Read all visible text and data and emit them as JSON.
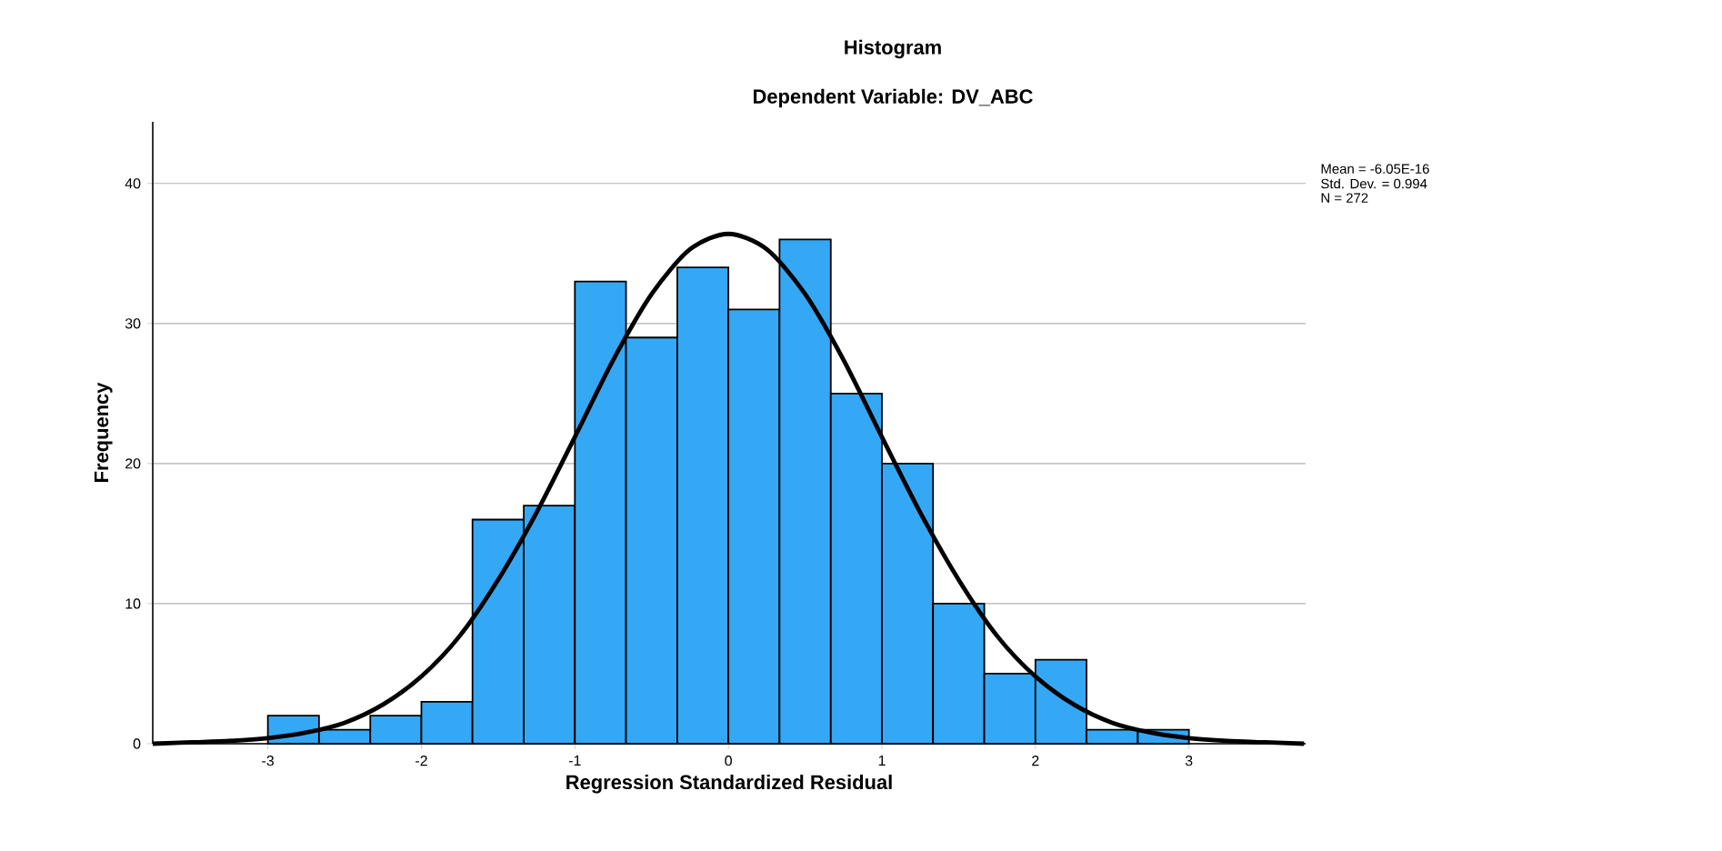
{
  "chart_data": {
    "type": "histogram",
    "title": "Histogram",
    "subtitle": "Dependent Variable: DV_ABC",
    "xlabel": "Regression Standardized Residual",
    "ylabel": "Frequency",
    "bins": [
      -3,
      -2.667,
      -2.333,
      -2,
      -1.667,
      -1.333,
      -1,
      -0.667,
      -0.333,
      0,
      0.333,
      0.667,
      1,
      1.333,
      1.667,
      2,
      2.333,
      2.667,
      3
    ],
    "values": [
      2,
      1,
      2,
      3,
      16,
      17,
      33,
      29,
      34,
      31,
      36,
      25,
      20,
      10,
      5,
      6,
      1,
      1
    ],
    "color": "#35a8f5",
    "series": [
      {
        "type": "line",
        "color": "#000000",
        "x": [
          -3.75,
          -3.5,
          -3.25,
          -3,
          -2.75,
          -2.5,
          -2.25,
          -2,
          -1.75,
          -1.5,
          -1.25,
          -1,
          -0.75,
          -0.5,
          -0.25,
          0,
          0.25,
          0.5,
          0.75,
          1,
          1.25,
          1.5,
          1.75,
          2,
          2.25,
          2.5,
          2.75,
          3,
          3.25,
          3.5,
          3.75
        ],
        "values": [
          0,
          0.1,
          0.2,
          0.4,
          0.8,
          1.5,
          2.8,
          4.8,
          7.7,
          11.7,
          16.5,
          21.9,
          27.4,
          32.1,
          35.3,
          36.4,
          35.3,
          32.1,
          27.4,
          21.9,
          16.5,
          11.7,
          7.7,
          4.8,
          2.8,
          1.5,
          0.8,
          0.4,
          0.2,
          0.1,
          0
        ]
      }
    ],
    "xlim": [
      -3.75,
      3.76
    ],
    "ylim": [
      0,
      44.4
    ],
    "xticks": [
      -3,
      -2,
      -1,
      0,
      1,
      2,
      3
    ],
    "yticks": [
      0,
      10,
      20,
      30,
      40
    ],
    "grid": "y",
    "annotations": [
      "Mean = -6.05E-16",
      "Std. Dev. = 0.994",
      "N = 272"
    ]
  }
}
